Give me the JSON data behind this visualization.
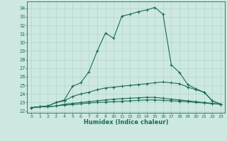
{
  "xlabel": "Humidex (Indice chaleur)",
  "xlim": [
    -0.5,
    23.5
  ],
  "ylim": [
    21.8,
    34.8
  ],
  "xticks": [
    0,
    1,
    2,
    3,
    4,
    5,
    6,
    7,
    8,
    9,
    10,
    11,
    12,
    13,
    14,
    15,
    16,
    17,
    18,
    19,
    20,
    21,
    22,
    23
  ],
  "yticks": [
    22,
    23,
    24,
    25,
    26,
    27,
    28,
    29,
    30,
    31,
    32,
    33,
    34
  ],
  "bg_color": "#cce8e0",
  "line_color": "#1a6b5a",
  "grid_color": "#b0d0c8",
  "line1_x": [
    0,
    1,
    2,
    3,
    4,
    5,
    6,
    7,
    8,
    9,
    10,
    11,
    12,
    13,
    14,
    15,
    16,
    17,
    18,
    19,
    20,
    21,
    22,
    23
  ],
  "line1_y": [
    22.4,
    22.5,
    22.6,
    23.0,
    23.3,
    24.9,
    25.3,
    26.6,
    29.0,
    31.1,
    30.5,
    33.1,
    33.3,
    33.6,
    33.8,
    34.1,
    33.3,
    27.4,
    26.5,
    25.1,
    24.6,
    24.2,
    23.2,
    22.8
  ],
  "line2_x": [
    0,
    1,
    2,
    3,
    4,
    5,
    6,
    7,
    8,
    9,
    10,
    11,
    12,
    13,
    14,
    15,
    16,
    17,
    18,
    19,
    20,
    21,
    22,
    23
  ],
  "line2_y": [
    22.4,
    22.5,
    22.6,
    23.0,
    23.2,
    23.7,
    24.0,
    24.2,
    24.5,
    24.7,
    24.8,
    24.9,
    25.0,
    25.1,
    25.2,
    25.3,
    25.4,
    25.3,
    25.2,
    24.8,
    24.5,
    24.2,
    23.2,
    22.8
  ],
  "line3_x": [
    0,
    1,
    2,
    3,
    4,
    5,
    6,
    7,
    8,
    9,
    10,
    11,
    12,
    13,
    14,
    15,
    16,
    17,
    18,
    19,
    20,
    21,
    22,
    23
  ],
  "line3_y": [
    22.4,
    22.5,
    22.5,
    22.6,
    22.8,
    22.9,
    23.0,
    23.1,
    23.2,
    23.3,
    23.4,
    23.45,
    23.5,
    23.55,
    23.6,
    23.6,
    23.5,
    23.4,
    23.3,
    23.2,
    23.1,
    23.0,
    22.9,
    22.8
  ],
  "line4_x": [
    0,
    1,
    2,
    3,
    4,
    5,
    6,
    7,
    8,
    9,
    10,
    11,
    12,
    13,
    14,
    15,
    16,
    17,
    18,
    19,
    20,
    21,
    22,
    23
  ],
  "line4_y": [
    22.4,
    22.5,
    22.5,
    22.6,
    22.7,
    22.75,
    22.85,
    22.95,
    23.0,
    23.05,
    23.1,
    23.15,
    23.2,
    23.25,
    23.3,
    23.3,
    23.25,
    23.2,
    23.15,
    23.1,
    23.0,
    22.95,
    22.85,
    22.8
  ]
}
